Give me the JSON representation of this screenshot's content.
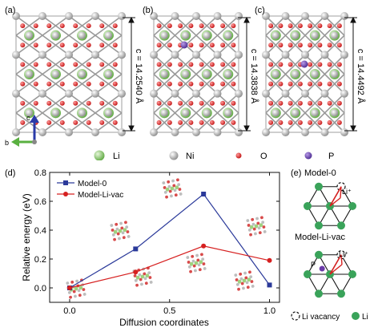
{
  "panels": {
    "a": {
      "label": "(a)",
      "c_label": "c = 14.2540 Å"
    },
    "b": {
      "label": "(b)",
      "c_label": "c = 14.3838 Å"
    },
    "c": {
      "label": "(c)",
      "c_label": "c = 14.4492 Å"
    }
  },
  "axes_triad": {
    "c": "c",
    "b": "b"
  },
  "legend_atoms": [
    {
      "name": "Li",
      "color": "#8cc96a"
    },
    {
      "name": "Ni",
      "color": "#b8b8b8"
    },
    {
      "name": "O",
      "color": "#d62020"
    },
    {
      "name": "P",
      "color": "#6a3aa8"
    }
  ],
  "panel_d_label": "(d)",
  "panel_e_label": "(e)",
  "chart_data": {
    "type": "line",
    "xlabel": "Diffusion coordinates",
    "ylabel": "Relative energy (eV)",
    "xlim": [
      -0.1,
      1.05
    ],
    "ylim": [
      -0.1,
      0.8
    ],
    "xticks": [
      "0.0",
      "0.5",
      "1.0"
    ],
    "xtick_values": [
      0.0,
      0.5,
      1.0
    ],
    "yticks": [
      "0.0",
      "0.2",
      "0.4",
      "0.6",
      "0.8"
    ],
    "ytick_values": [
      0.0,
      0.2,
      0.4,
      0.6,
      0.8
    ],
    "series": [
      {
        "name": "Model-0",
        "color": "#2b3a9a",
        "marker": "square",
        "x": [
          0.0,
          0.33,
          0.67,
          1.0
        ],
        "y": [
          0.0,
          0.27,
          0.65,
          0.02
        ]
      },
      {
        "name": "Model-Li-vac",
        "color": "#d62020",
        "marker": "circle",
        "x": [
          0.0,
          0.33,
          0.67,
          1.0
        ],
        "y": [
          0.0,
          0.11,
          0.29,
          0.19
        ]
      }
    ],
    "legend_position": "top-left"
  },
  "panel_e": {
    "model0_label": "Model-0",
    "modelvac_label": "Model-Li-vac",
    "li_plus_1": "Li⁺",
    "li_plus_2": "Li⁺",
    "p_label": "P",
    "legend_vacancy": "Li vacancy",
    "legend_li": "Li"
  }
}
